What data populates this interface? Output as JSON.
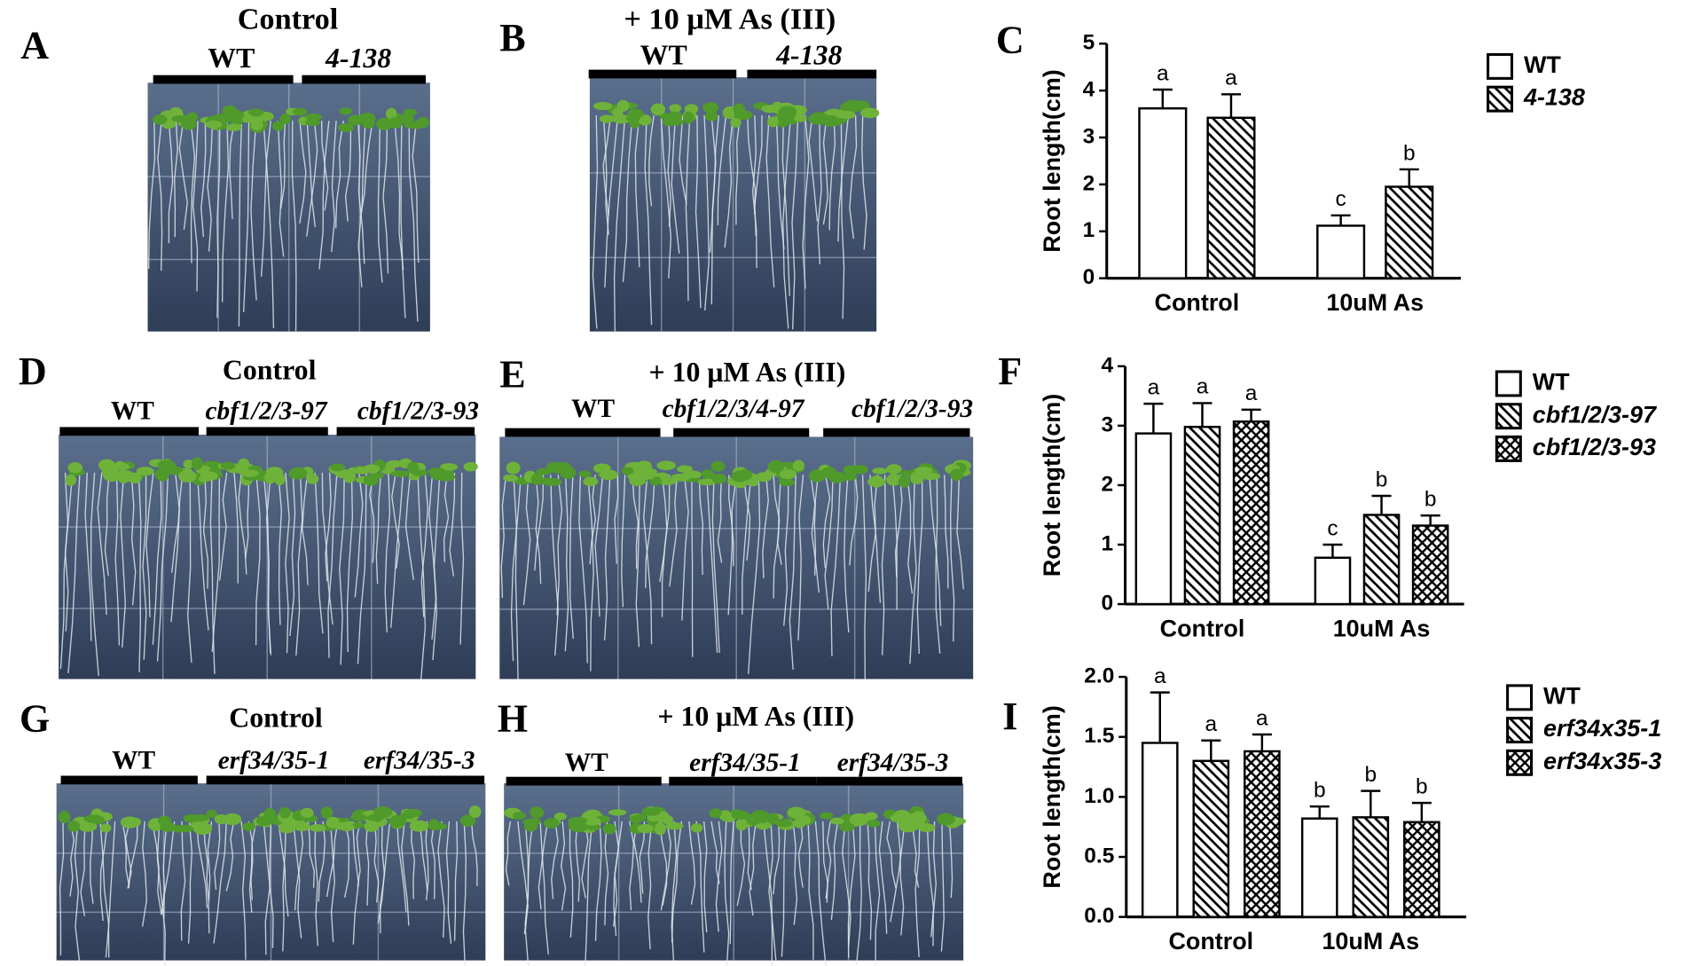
{
  "photo_panels": [
    {
      "panel": "A",
      "title": "Control",
      "labels": [
        "WT",
        "4-138"
      ]
    },
    {
      "panel": "B",
      "title": "+ 10 μM As (III)",
      "labels": [
        "WT",
        "4-138"
      ]
    },
    {
      "panel": "D",
      "title": "Control",
      "labels": [
        "WT",
        "cbf1/2/3-97",
        "cbf1/2/3-93"
      ]
    },
    {
      "panel": "E",
      "title": "+ 10 μM As (III)",
      "labels": [
        "WT",
        "cbf1/2/3/4-97",
        "cbf1/2/3-93"
      ]
    },
    {
      "panel": "G",
      "title": "Control",
      "labels": [
        "WT",
        "erf34/35-1",
        "erf34/35-3"
      ]
    },
    {
      "panel": "H",
      "title": "+ 10 μM As (III)",
      "labels": [
        "WT",
        "erf34/35-1",
        "erf34/35-3"
      ]
    }
  ],
  "chart_data": [
    {
      "type": "bar",
      "panel": "C",
      "y_label": "Root length(cm)",
      "categories": [
        "Control",
        "10uM As"
      ],
      "ylim": [
        0,
        5
      ],
      "yticks": [
        0,
        1,
        2,
        3,
        4,
        5
      ],
      "series": [
        {
          "name": "WT",
          "color": "#000000",
          "pattern": "none",
          "values": [
            3.62,
            1.12
          ],
          "errors": [
            0.4,
            0.22
          ],
          "letters": [
            "a",
            "c"
          ]
        },
        {
          "name": "4-138",
          "color": "#000000",
          "pattern": "hatch",
          "values": [
            3.42,
            1.95
          ],
          "errors": [
            0.5,
            0.37
          ],
          "letters": [
            "a",
            "b"
          ]
        }
      ]
    },
    {
      "type": "bar",
      "panel": "F",
      "y_label": "Root length(cm)",
      "categories": [
        "Control",
        "10uM As"
      ],
      "ylim": [
        0,
        4
      ],
      "yticks": [
        0,
        1,
        2,
        3,
        4
      ],
      "series": [
        {
          "name": "WT",
          "color": "#000000",
          "pattern": "none",
          "values": [
            2.87,
            0.78
          ],
          "errors": [
            0.5,
            0.22
          ],
          "letters": [
            "a",
            "c"
          ]
        },
        {
          "name": "cbf1/2/3-97",
          "color": "#000000",
          "pattern": "hatch",
          "values": [
            2.98,
            1.5
          ],
          "errors": [
            0.4,
            0.32
          ],
          "letters": [
            "a",
            "b"
          ]
        },
        {
          "name": "cbf1/2/3-93",
          "color": "#000000",
          "pattern": "crosshatch",
          "values": [
            3.07,
            1.32
          ],
          "errors": [
            0.2,
            0.17
          ],
          "letters": [
            "a",
            "b"
          ]
        }
      ]
    },
    {
      "type": "bar",
      "panel": "I",
      "y_label": "Root length(cm)",
      "categories": [
        "Control",
        "10uM As"
      ],
      "ylim": [
        0,
        2
      ],
      "yticks": [
        {
          "value": 0,
          "label": "0.0"
        },
        0.5,
        {
          "value": 1,
          "label": "1.0"
        },
        1.5,
        {
          "value": 2,
          "label": "2.0"
        }
      ],
      "series": [
        {
          "name": "WT",
          "color": "#000000",
          "pattern": "none",
          "values": [
            1.45,
            0.82
          ],
          "errors": [
            0.42,
            0.1
          ],
          "letters": [
            "a",
            "b"
          ]
        },
        {
          "name": "erf34x35-1",
          "color": "#000000",
          "pattern": "hatch",
          "values": [
            1.3,
            0.83
          ],
          "errors": [
            0.17,
            0.22
          ],
          "letters": [
            "a",
            "b"
          ]
        },
        {
          "name": "erf34x35-3",
          "color": "#000000",
          "pattern": "crosshatch",
          "values": [
            1.38,
            0.79
          ],
          "errors": [
            0.14,
            0.16
          ],
          "letters": [
            "a",
            "b"
          ]
        }
      ]
    }
  ]
}
